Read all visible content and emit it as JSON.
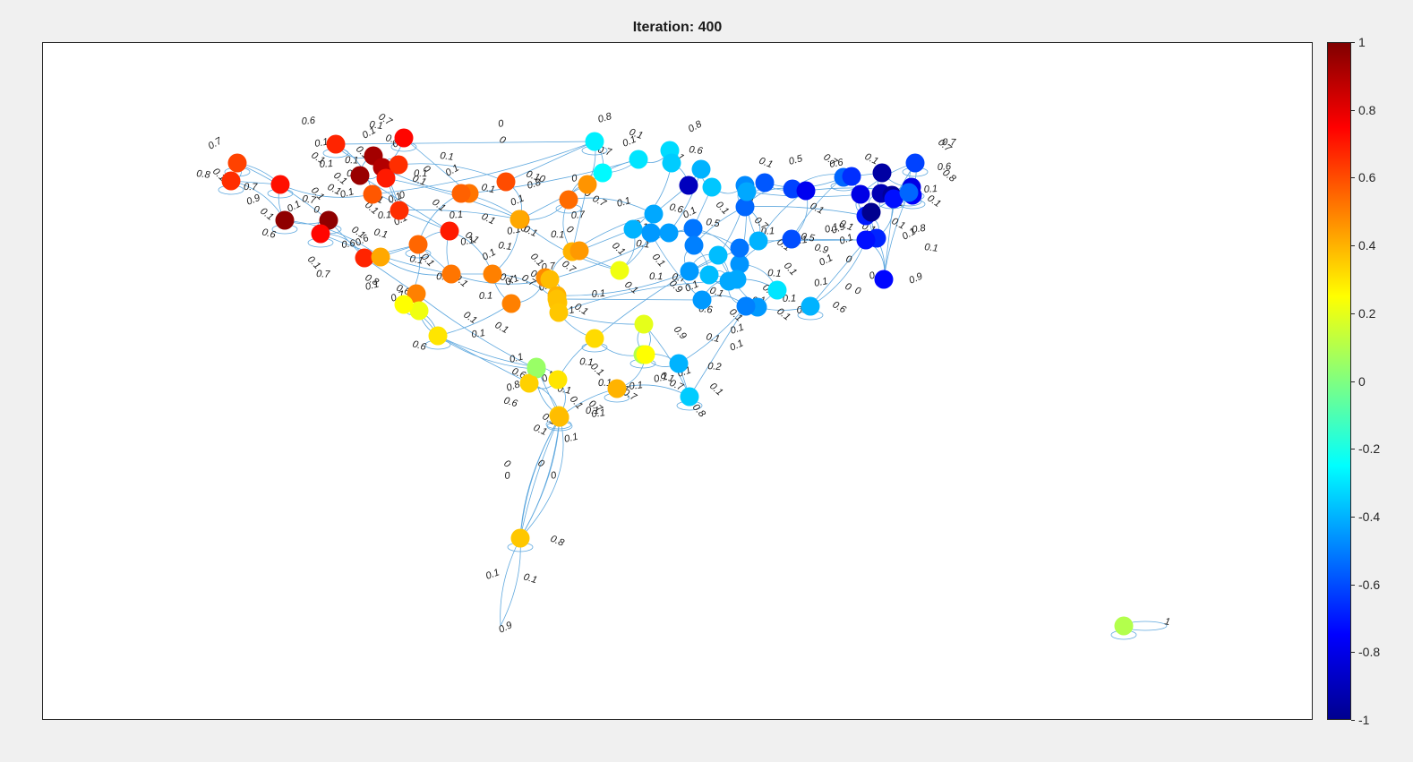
{
  "figure": {
    "title": "Iteration: 400"
  },
  "colors": {
    "edge": "#5fa8de",
    "colormap": [
      "#00008f",
      "#0000ff",
      "#0080ff",
      "#00ffff",
      "#80ff80",
      "#ffff00",
      "#ff8000",
      "#ff0000",
      "#800000"
    ]
  },
  "colorbar": {
    "limits": [
      -1,
      1
    ],
    "ticks": [
      {
        "value": 1,
        "label": "1"
      },
      {
        "value": 0.8,
        "label": "0.8"
      },
      {
        "value": 0.6,
        "label": "0.6"
      },
      {
        "value": 0.4,
        "label": "0.4"
      },
      {
        "value": 0.2,
        "label": "0.2"
      },
      {
        "value": 0,
        "label": "0"
      },
      {
        "value": -0.2,
        "label": "-0.2"
      },
      {
        "value": -0.4,
        "label": "-0.4"
      },
      {
        "value": -0.6,
        "label": "-0.6"
      },
      {
        "value": -0.8,
        "label": "-0.8"
      },
      {
        "value": -1,
        "label": "-1"
      }
    ]
  },
  "chart_data": {
    "type": "network",
    "title": "Iteration: 400",
    "nodes": [
      {
        "id": 1,
        "value": 0.62
      },
      {
        "id": 2,
        "value": 0.66
      },
      {
        "id": 3,
        "value": 0.72
      },
      {
        "id": 4,
        "value": 0.68
      },
      {
        "id": 5,
        "value": 0.74
      },
      {
        "id": 6,
        "value": 0.93
      },
      {
        "id": 7,
        "value": 0.95
      },
      {
        "id": 8,
        "value": 0.9
      },
      {
        "id": 9,
        "value": 0.66
      },
      {
        "id": 10,
        "value": 0.7
      },
      {
        "id": 11,
        "value": 0.97
      },
      {
        "id": 12,
        "value": 0.97
      },
      {
        "id": 13,
        "value": 0.74
      },
      {
        "id": 14,
        "value": 0.58
      },
      {
        "id": 15,
        "value": 0.66
      },
      {
        "id": 16,
        "value": 0.7
      },
      {
        "id": 17,
        "value": 0.52
      },
      {
        "id": 18,
        "value": 0.6
      },
      {
        "id": 19,
        "value": 0.56
      },
      {
        "id": 20,
        "value": 0.55
      },
      {
        "id": 21,
        "value": 0.5
      },
      {
        "id": 22,
        "value": 0.48
      },
      {
        "id": 23,
        "value": 0.42
      },
      {
        "id": 24,
        "value": 0.68
      },
      {
        "id": 25,
        "value": 0.52
      },
      {
        "id": 26,
        "value": 0.5
      },
      {
        "id": 27,
        "value": 0.5
      },
      {
        "id": 28,
        "value": 0.48
      },
      {
        "id": 29,
        "value": 0.54
      },
      {
        "id": 30,
        "value": 0.46
      },
      {
        "id": 31,
        "value": 0.4
      },
      {
        "id": 32,
        "value": 0.45
      },
      {
        "id": 33,
        "value": 0.38
      },
      {
        "id": 34,
        "value": 0.36
      },
      {
        "id": 35,
        "value": 0.4
      },
      {
        "id": 36,
        "value": 0.3
      },
      {
        "id": 37,
        "value": 0.22
      },
      {
        "id": 38,
        "value": 0.25
      },
      {
        "id": 39,
        "value": 0.42
      },
      {
        "id": 40,
        "value": 0.02
      },
      {
        "id": 41,
        "value": 0.34
      },
      {
        "id": 42,
        "value": 0.3
      },
      {
        "id": 43,
        "value": 0.36
      },
      {
        "id": 44,
        "value": 0.37
      },
      {
        "id": 45,
        "value": 0.36
      },
      {
        "id": 46,
        "value": 0.32
      },
      {
        "id": 47,
        "value": 0.1
      },
      {
        "id": 48,
        "value": -0.28
      },
      {
        "id": 49,
        "value": -0.26
      },
      {
        "id": 50,
        "value": -0.3
      },
      {
        "id": 51,
        "value": -0.32
      },
      {
        "id": 52,
        "value": -0.35
      },
      {
        "id": 53,
        "value": -0.88
      },
      {
        "id": 54,
        "value": -0.4
      },
      {
        "id": 55,
        "value": -0.36
      },
      {
        "id": 56,
        "value": -0.42
      },
      {
        "id": 57,
        "value": -0.4
      },
      {
        "id": 58,
        "value": -0.44
      },
      {
        "id": 59,
        "value": -0.52
      },
      {
        "id": 60,
        "value": -0.5
      },
      {
        "id": 61,
        "value": -0.45
      },
      {
        "id": 62,
        "value": -0.38
      },
      {
        "id": 63,
        "value": -0.42
      },
      {
        "id": 64,
        "value": -0.46
      },
      {
        "id": 65,
        "value": -0.48
      },
      {
        "id": 66,
        "value": -0.55
      },
      {
        "id": 67,
        "value": -0.4
      },
      {
        "id": 68,
        "value": -0.42
      },
      {
        "id": 69,
        "value": -0.58
      },
      {
        "id": 70,
        "value": -0.62
      },
      {
        "id": 71,
        "value": -0.78
      },
      {
        "id": 72,
        "value": -0.6
      },
      {
        "id": 73,
        "value": -0.55
      },
      {
        "id": 74,
        "value": -0.93
      },
      {
        "id": 75,
        "value": -0.9
      },
      {
        "id": 76,
        "value": -0.95
      },
      {
        "id": 77,
        "value": -0.76
      },
      {
        "id": 78,
        "value": -0.72
      },
      {
        "id": 79,
        "value": -0.62
      },
      {
        "id": 80,
        "value": -0.8
      },
      {
        "id": 81,
        "value": -0.7
      },
      {
        "id": 82,
        "value": -0.68
      },
      {
        "id": 83,
        "value": -0.97
      },
      {
        "id": 84,
        "value": -0.8
      },
      {
        "id": 85,
        "value": -0.74
      },
      {
        "id": 86,
        "value": -0.72
      },
      {
        "id": 87,
        "value": -0.4
      },
      {
        "id": 88,
        "value": -0.45
      },
      {
        "id": 89,
        "value": -0.3
      },
      {
        "id": 90,
        "value": -0.42
      },
      {
        "id": 91,
        "value": -0.45
      },
      {
        "id": 92,
        "value": -0.5
      },
      {
        "id": 93,
        "value": -0.4
      },
      {
        "id": 94,
        "value": -0.35
      },
      {
        "id": 95,
        "value": 0.2
      },
      {
        "id": 96,
        "value": 0.25
      },
      {
        "id": 97,
        "value": 0.05
      },
      {
        "id": 98,
        "value": 0.22
      },
      {
        "id": 99,
        "value": 0.4
      },
      {
        "id": 100,
        "value": 0.38
      },
      {
        "id": 101,
        "value": 0.38
      },
      {
        "id": 102,
        "value": 0.36
      },
      {
        "id": 103,
        "value": 0.1
      },
      {
        "id": 104,
        "value": -0.55
      },
      {
        "id": 105,
        "value": -0.66
      },
      {
        "id": 106,
        "value": -0.52
      },
      {
        "id": 107,
        "value": -0.38
      },
      {
        "id": 108,
        "value": -0.45
      }
    ],
    "edge_labels": [
      "0",
      "0.1",
      "0.5",
      "0.6",
      "0.7",
      "0.8",
      "0.9",
      "1"
    ]
  }
}
